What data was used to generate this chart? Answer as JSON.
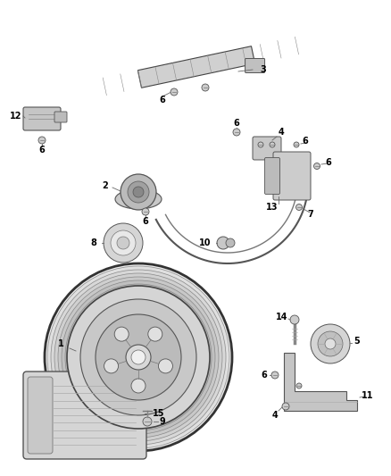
{
  "background_color": "#ffffff",
  "figsize": [
    4.38,
    5.33
  ],
  "dpi": 100,
  "line_color": "#555555",
  "label_fontsize": 7
}
